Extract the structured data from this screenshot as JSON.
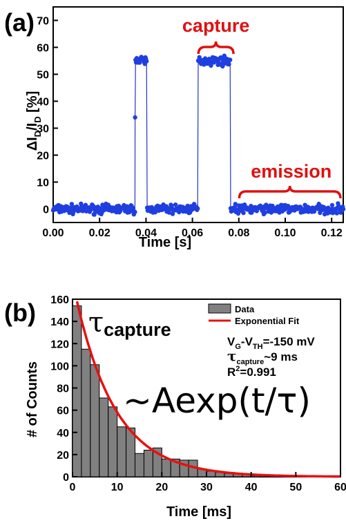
{
  "chart_data": [
    {
      "type": "scatter",
      "panel_label": "(a)",
      "xlabel": "Time [s]",
      "ylabel_parts": [
        "ΔI",
        "D",
        "/I",
        "D",
        " [%]"
      ],
      "xlim": [
        0,
        0.125
      ],
      "ylim": [
        -5,
        75
      ],
      "x_ticks": [
        "0.00",
        "0.02",
        "0.04",
        "0.06",
        "0.08",
        "0.10",
        "0.12"
      ],
      "x_tick_values": [
        0,
        0.02,
        0.04,
        0.06,
        0.08,
        0.1,
        0.12
      ],
      "y_ticks": [
        "0",
        "10",
        "20",
        "30",
        "40",
        "50",
        "60",
        "70"
      ],
      "y_tick_values": [
        0,
        10,
        20,
        30,
        40,
        50,
        60,
        70
      ],
      "signal": {
        "low_level": 0,
        "high_level": 55,
        "high_segments": [
          [
            0.0355,
            0.0405
          ],
          [
            0.0625,
            0.0765
          ]
        ],
        "transition_points": [
          {
            "x": 0.0353,
            "y": 34
          }
        ]
      },
      "annotations": {
        "capture": {
          "text": "capture",
          "x_range": [
            0.062,
            0.0765
          ]
        },
        "emission": {
          "text": "emission",
          "x_range": [
            0.079,
            0.125
          ]
        }
      }
    },
    {
      "type": "bar",
      "panel_label": "(b)",
      "xlabel": "Time [ms]",
      "ylabel": "# of Counts",
      "xlim": [
        0,
        60
      ],
      "ylim": [
        0,
        160
      ],
      "x_ticks": [
        "0",
        "10",
        "20",
        "30",
        "40",
        "50",
        "60"
      ],
      "x_tick_values": [
        0,
        10,
        20,
        30,
        40,
        50,
        60
      ],
      "y_ticks": [
        "0",
        "20",
        "40",
        "60",
        "80",
        "100",
        "120",
        "140",
        "160"
      ],
      "y_tick_values": [
        0,
        20,
        40,
        60,
        80,
        100,
        120,
        140,
        160
      ],
      "bin_width": 2,
      "bins": [
        {
          "x": 1,
          "value": 154
        },
        {
          "x": 3,
          "value": 115
        },
        {
          "x": 5,
          "value": 101
        },
        {
          "x": 7,
          "value": 71
        },
        {
          "x": 9,
          "value": 63
        },
        {
          "x": 11,
          "value": 45
        },
        {
          "x": 13,
          "value": 44
        },
        {
          "x": 15,
          "value": 21
        },
        {
          "x": 17,
          "value": 24
        },
        {
          "x": 19,
          "value": 26
        },
        {
          "x": 21,
          "value": 16
        },
        {
          "x": 23,
          "value": 16
        },
        {
          "x": 25,
          "value": 15
        },
        {
          "x": 27,
          "value": 15
        },
        {
          "x": 29,
          "value": 7
        },
        {
          "x": 31,
          "value": 5
        },
        {
          "x": 33,
          "value": 4
        },
        {
          "x": 35,
          "value": 3
        },
        {
          "x": 37,
          "value": 3
        },
        {
          "x": 39,
          "value": 2
        },
        {
          "x": 41,
          "value": 1
        },
        {
          "x": 43,
          "value": 1
        },
        {
          "x": 45,
          "value": 0
        },
        {
          "x": 47,
          "value": 1
        },
        {
          "x": 49,
          "value": 0
        },
        {
          "x": 51,
          "value": 0
        },
        {
          "x": 53,
          "value": 0
        },
        {
          "x": 55,
          "value": 0
        },
        {
          "x": 57,
          "value": 0
        },
        {
          "x": 59,
          "value": 1
        }
      ],
      "fit": {
        "name": "Exponential Fit",
        "A": 158,
        "tau": 9,
        "x_start": 1
      },
      "legend": {
        "placement": "top-right",
        "entries": [
          "Data",
          "Exponential Fit"
        ]
      },
      "annotations": {
        "tau_symbol": "τ",
        "tau_label": "capture",
        "formula": "~Aexp(t/τ)",
        "vg_line": {
          "a": "V",
          "a_sub": "G",
          "b": "-V",
          "b_sub": "TH",
          "rest": "=-150 mV"
        },
        "tau_line": {
          "sym": "τ",
          "sub": "capture",
          "rest": "~9 ms"
        },
        "r2_line": {
          "a": "R",
          "sup": "2",
          "rest": "=0.991"
        }
      }
    }
  ],
  "colors": {
    "data_blue": "#1f3fe0",
    "line_blue": "#2233cc",
    "annotation_red": "#e01010",
    "bar_fill": "#808080",
    "fit_red": "#e81010"
  }
}
